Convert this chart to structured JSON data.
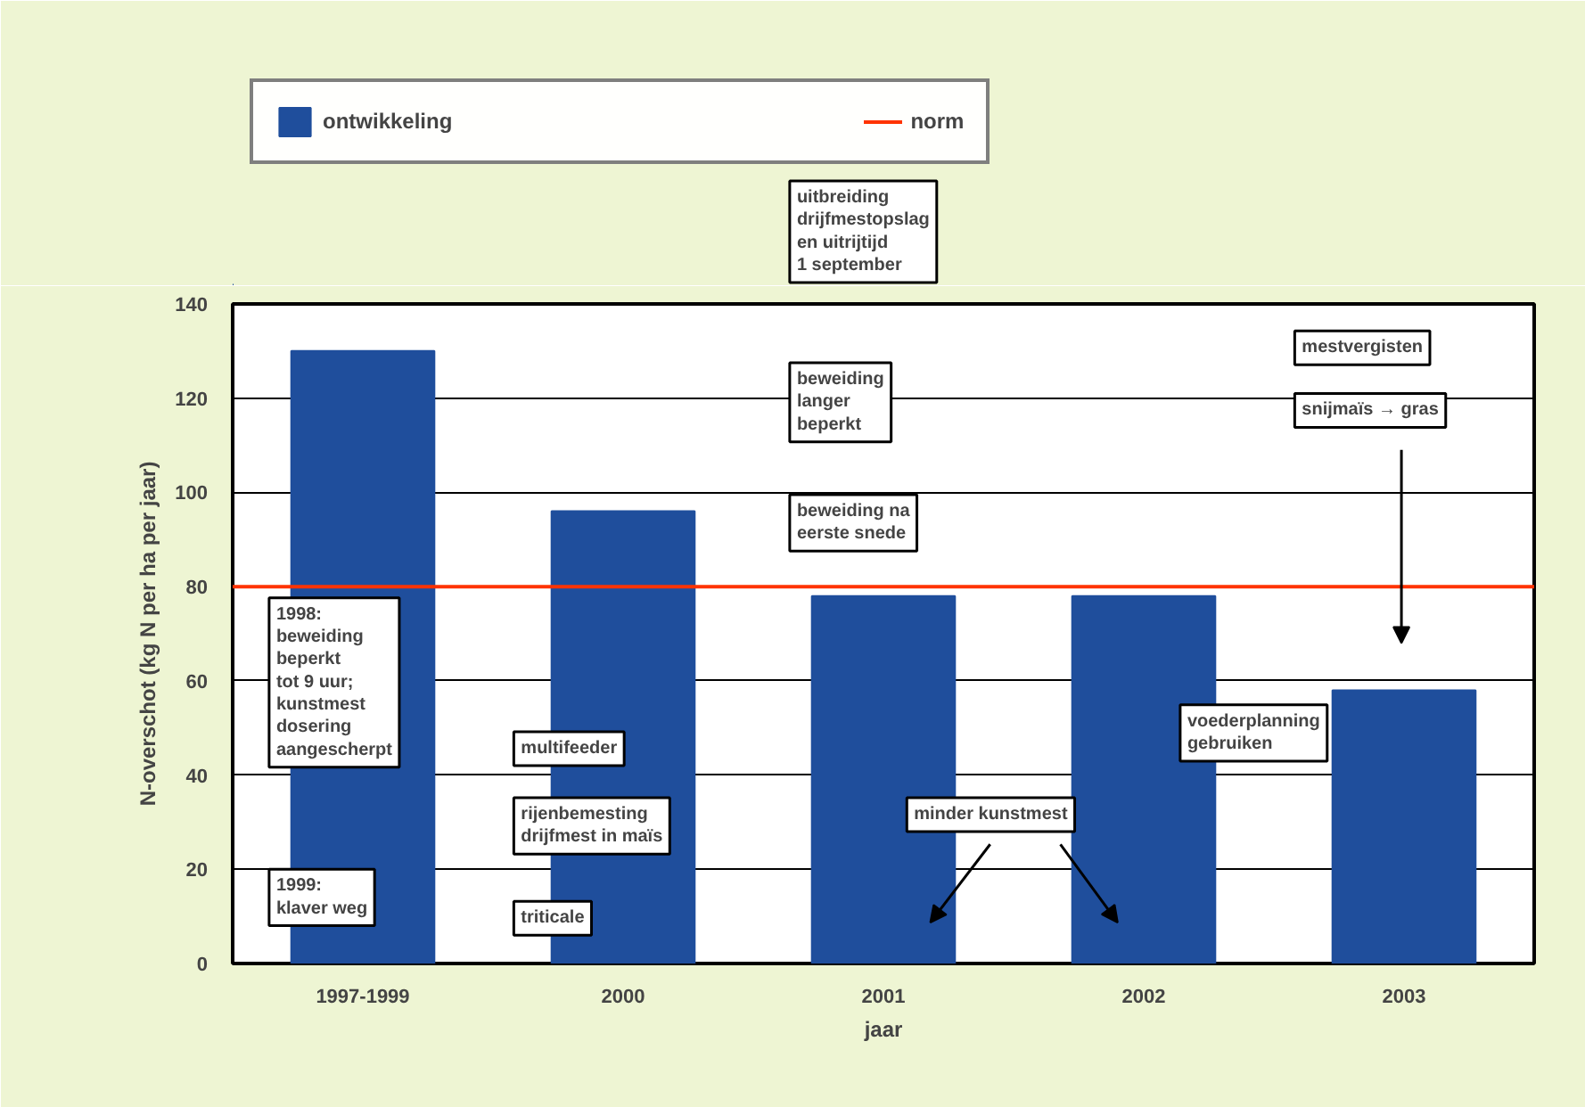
{
  "chart_data": {
    "type": "bar",
    "xlabel": "jaar",
    "ylabel": "N-overschot (kg N per ha per jaar)",
    "categories": [
      "1997-1999",
      "2000",
      "2001",
      "2002",
      "2003"
    ],
    "series": [
      {
        "name": "ontwikkeling",
        "color": "#1f4e9c",
        "values": [
          130,
          96,
          78,
          78,
          58
        ]
      }
    ],
    "ylim": [
      0,
      140
    ],
    "yticks": [
      0,
      20,
      40,
      60,
      80,
      100,
      120,
      140
    ],
    "grid": "y",
    "legend": "top",
    "ref_lines": [
      {
        "axis": "y",
        "value": 80,
        "label": "norm",
        "color": "#ff3300"
      }
    ],
    "annotations": [
      "1998:\nbeweiding\nbeperkt\ntot 9 uur;\nkunstmest\ndosering\naangescherpt",
      "1999:\nklaver weg",
      "multifeeder",
      "rijenbemesting\ndrijfmest in maïs",
      "triticale",
      "uitbreiding\ndrijfmestopslag\nen uitrijtijd\n1 september",
      "beweiding\nlanger\nbeperkt",
      "beweiding na\neerste snede",
      "minder kunstmest",
      "voederplanning\ngebruiken",
      "mestvergisten",
      "snijmaïs → gras"
    ]
  }
}
